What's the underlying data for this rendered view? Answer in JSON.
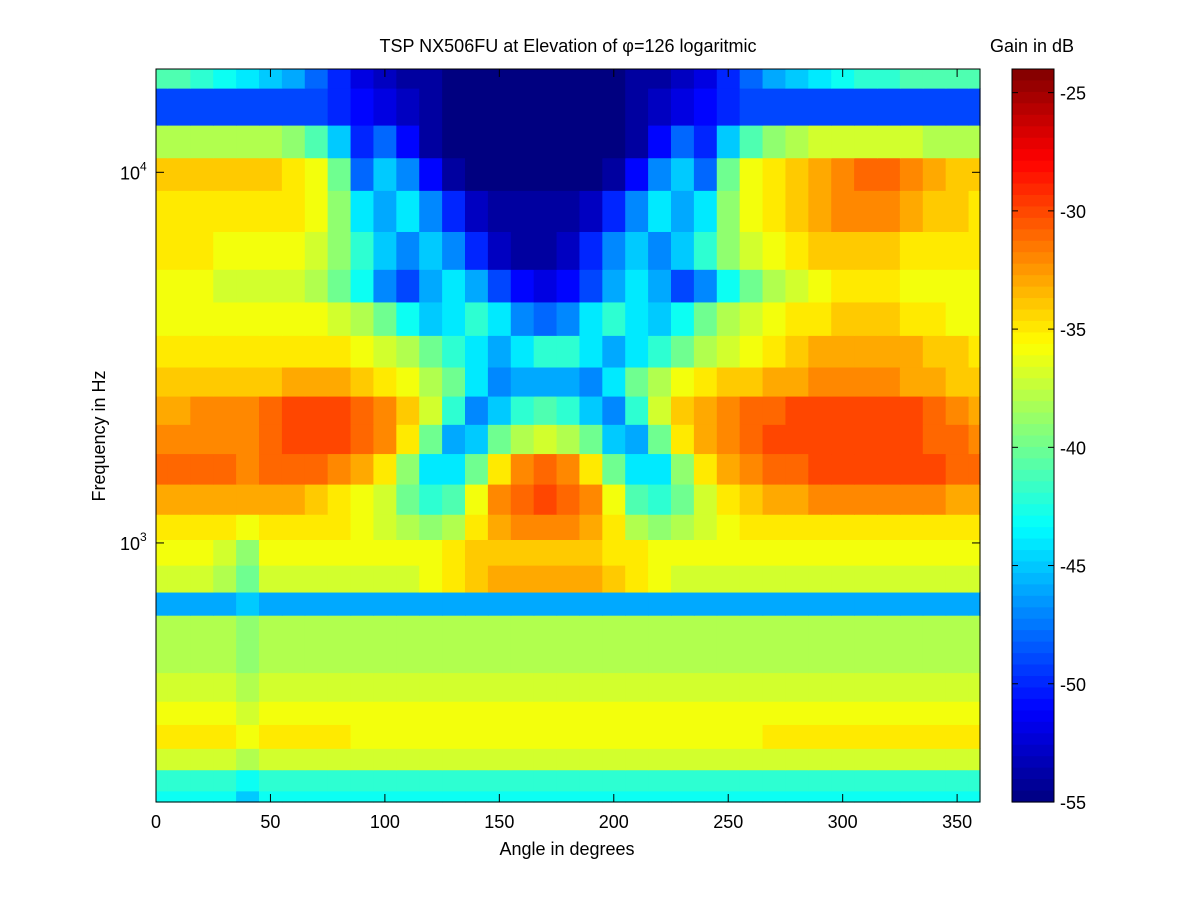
{
  "chart_data": {
    "type": "heatmap",
    "title": "TSP NX506FU at Elevation of φ=126 logaritmic",
    "xlabel": "Angle in degrees",
    "ylabel": "Frequency in Hz",
    "colorbar_label": "Gain in dB",
    "colormap": "jet",
    "x_range": [
      0,
      360
    ],
    "y_range": [
      200,
      19000
    ],
    "y_scale": "log",
    "clim": [
      -55,
      -24
    ],
    "grid": false,
    "x_ticks": [
      0,
      50,
      100,
      150,
      200,
      250,
      300,
      350
    ],
    "y_ticks": [
      {
        "base": "10",
        "exp": "3",
        "value": 1000
      },
      {
        "base": "10",
        "exp": "4",
        "value": 10000
      }
    ],
    "colorbar_ticks": [
      -25,
      -30,
      -35,
      -40,
      -45,
      -50,
      -55
    ],
    "angles": [
      0,
      10,
      20,
      30,
      40,
      50,
      60,
      70,
      80,
      90,
      100,
      110,
      120,
      130,
      140,
      150,
      160,
      170,
      180,
      190,
      200,
      210,
      220,
      230,
      240,
      250,
      260,
      270,
      280,
      290,
      300,
      310,
      320,
      330,
      340,
      350,
      360
    ],
    "frequencies": [
      200,
      230,
      260,
      300,
      350,
      400,
      500,
      600,
      680,
      800,
      950,
      1100,
      1300,
      1600,
      1900,
      2300,
      2700,
      3300,
      4000,
      5000,
      6000,
      8000,
      10000,
      12000,
      15000,
      19000
    ],
    "gain_db": [
      [
        -43,
        -43,
        -43,
        -43,
        -45,
        -43,
        -43,
        -43,
        -43,
        -43,
        -43,
        -43,
        -43,
        -43,
        -43,
        -43,
        -43,
        -43,
        -43,
        -43,
        -43,
        -43,
        -43,
        -43,
        -43,
        -43,
        -43,
        -43,
        -43,
        -43,
        -43,
        -43,
        -43,
        -43,
        -43,
        -43,
        -43
      ],
      [
        -42,
        -42,
        -42,
        -42,
        -43,
        -42,
        -42,
        -42,
        -42,
        -42,
        -42,
        -42,
        -42,
        -42,
        -42,
        -42,
        -42,
        -42,
        -42,
        -42,
        -42,
        -42,
        -42,
        -42,
        -42,
        -42,
        -42,
        -42,
        -42,
        -42,
        -42,
        -42,
        -42,
        -42,
        -42,
        -42,
        -42
      ],
      [
        -37,
        -37,
        -37,
        -37,
        -38,
        -37,
        -37,
        -37,
        -37,
        -37,
        -37,
        -37,
        -37,
        -37,
        -37,
        -37,
        -37,
        -37,
        -37,
        -37,
        -37,
        -37,
        -37,
        -37,
        -37,
        -37,
        -37,
        -37,
        -37,
        -37,
        -37,
        -37,
        -37,
        -37,
        -37,
        -37,
        -37
      ],
      [
        -35,
        -35,
        -35,
        -35,
        -36,
        -35,
        -35,
        -35,
        -35,
        -36,
        -36,
        -36,
        -36,
        -36,
        -36,
        -36,
        -36,
        -36,
        -36,
        -36,
        -36,
        -36,
        -36,
        -36,
        -36,
        -36,
        -36,
        -35,
        -35,
        -35,
        -35,
        -35,
        -35,
        -35,
        -35,
        -35,
        -35
      ],
      [
        -36,
        -36,
        -36,
        -36,
        -37,
        -36,
        -36,
        -36,
        -36,
        -36,
        -36,
        -36,
        -36,
        -36,
        -36,
        -36,
        -36,
        -36,
        -36,
        -36,
        -36,
        -36,
        -36,
        -36,
        -36,
        -36,
        -36,
        -36,
        -36,
        -36,
        -36,
        -36,
        -36,
        -36,
        -36,
        -36,
        -36
      ],
      [
        -37,
        -37,
        -37,
        -37,
        -38,
        -37,
        -37,
        -37,
        -37,
        -37,
        -37,
        -37,
        -37,
        -37,
        -37,
        -37,
        -37,
        -37,
        -37,
        -37,
        -37,
        -37,
        -37,
        -37,
        -37,
        -37,
        -37,
        -37,
        -37,
        -37,
        -37,
        -37,
        -37,
        -37,
        -37,
        -37,
        -37
      ],
      [
        -38,
        -38,
        -38,
        -38,
        -39,
        -38,
        -38,
        -38,
        -38,
        -38,
        -38,
        -38,
        -38,
        -38,
        -38,
        -38,
        -38,
        -38,
        -38,
        -38,
        -38,
        -38,
        -38,
        -38,
        -38,
        -38,
        -38,
        -38,
        -38,
        -38,
        -38,
        -38,
        -38,
        -38,
        -38,
        -38,
        -38
      ],
      [
        -38,
        -38,
        -38,
        -38,
        -39,
        -38,
        -38,
        -38,
        -38,
        -38,
        -38,
        -38,
        -38,
        -38,
        -38,
        -38,
        -38,
        -38,
        -38,
        -38,
        -38,
        -38,
        -38,
        -38,
        -38,
        -38,
        -38,
        -38,
        -38,
        -38,
        -38,
        -38,
        -38,
        -38,
        -38,
        -38,
        -38
      ],
      [
        -46,
        -46,
        -46,
        -46,
        -45,
        -46,
        -46,
        -46,
        -46,
        -46,
        -46,
        -46,
        -46,
        -46,
        -46,
        -46,
        -46,
        -46,
        -46,
        -46,
        -46,
        -46,
        -46,
        -46,
        -46,
        -46,
        -46,
        -46,
        -46,
        -46,
        -46,
        -46,
        -46,
        -46,
        -46,
        -46,
        -46
      ],
      [
        -37,
        -37,
        -37,
        -38,
        -40,
        -37,
        -37,
        -37,
        -37,
        -37,
        -37,
        -37,
        -36,
        -35,
        -34,
        -33,
        -33,
        -33,
        -33,
        -33,
        -34,
        -35,
        -36,
        -37,
        -37,
        -37,
        -37,
        -37,
        -37,
        -37,
        -37,
        -37,
        -37,
        -37,
        -37,
        -37,
        -37
      ],
      [
        -36,
        -36,
        -36,
        -37,
        -39,
        -36,
        -36,
        -36,
        -36,
        -36,
        -36,
        -36,
        -36,
        -35,
        -34,
        -34,
        -34,
        -34,
        -34,
        -34,
        -35,
        -35,
        -36,
        -36,
        -36,
        -36,
        -36,
        -36,
        -36,
        -36,
        -36,
        -36,
        -36,
        -36,
        -36,
        -36,
        -36
      ],
      [
        -35,
        -35,
        -35,
        -35,
        -36,
        -35,
        -35,
        -35,
        -35,
        -36,
        -37,
        -38,
        -39,
        -38,
        -35,
        -33,
        -32,
        -32,
        -32,
        -33,
        -35,
        -38,
        -39,
        -38,
        -37,
        -36,
        -35,
        -35,
        -35,
        -35,
        -35,
        -35,
        -35,
        -35,
        -35,
        -35,
        -35
      ],
      [
        -33,
        -33,
        -33,
        -33,
        -33,
        -33,
        -33,
        -34,
        -35,
        -36,
        -37,
        -40,
        -42,
        -41,
        -36,
        -32,
        -31,
        -30,
        -31,
        -32,
        -36,
        -41,
        -42,
        -40,
        -37,
        -35,
        -34,
        -33,
        -33,
        -32,
        -32,
        -32,
        -32,
        -32,
        -32,
        -33,
        -33
      ],
      [
        -31,
        -31,
        -31,
        -31,
        -32,
        -31,
        -31,
        -31,
        -32,
        -33,
        -35,
        -39,
        -44,
        -44,
        -40,
        -35,
        -32,
        -31,
        -32,
        -35,
        -40,
        -44,
        -44,
        -39,
        -35,
        -33,
        -32,
        -31,
        -31,
        -30,
        -30,
        -30,
        -30,
        -30,
        -30,
        -31,
        -31
      ],
      [
        -32,
        -32,
        -32,
        -32,
        -32,
        -31,
        -30,
        -30,
        -30,
        -31,
        -32,
        -35,
        -40,
        -46,
        -45,
        -40,
        -38,
        -37,
        -38,
        -40,
        -45,
        -46,
        -40,
        -35,
        -33,
        -32,
        -31,
        -30,
        -30,
        -30,
        -30,
        -30,
        -30,
        -30,
        -31,
        -31,
        -32
      ],
      [
        -33,
        -33,
        -32,
        -32,
        -32,
        -31,
        -30,
        -30,
        -30,
        -31,
        -32,
        -34,
        -37,
        -42,
        -47,
        -45,
        -42,
        -41,
        -42,
        -45,
        -47,
        -42,
        -37,
        -34,
        -33,
        -32,
        -31,
        -31,
        -30,
        -30,
        -30,
        -30,
        -30,
        -30,
        -31,
        -32,
        -33
      ],
      [
        -34,
        -34,
        -34,
        -34,
        -34,
        -34,
        -33,
        -33,
        -33,
        -34,
        -35,
        -36,
        -38,
        -40,
        -44,
        -47,
        -46,
        -46,
        -46,
        -47,
        -44,
        -40,
        -38,
        -36,
        -35,
        -34,
        -34,
        -33,
        -33,
        -32,
        -32,
        -32,
        -32,
        -33,
        -33,
        -34,
        -34
      ],
      [
        -35,
        -35,
        -35,
        -35,
        -35,
        -35,
        -35,
        -35,
        -35,
        -36,
        -37,
        -38,
        -40,
        -42,
        -44,
        -46,
        -44,
        -42,
        -42,
        -44,
        -46,
        -44,
        -42,
        -40,
        -38,
        -37,
        -36,
        -35,
        -34,
        -33,
        -33,
        -33,
        -33,
        -33,
        -34,
        -34,
        -35
      ],
      [
        -36,
        -36,
        -36,
        -36,
        -36,
        -36,
        -36,
        -36,
        -37,
        -38,
        -40,
        -43,
        -45,
        -44,
        -42,
        -44,
        -47,
        -48,
        -47,
        -44,
        -42,
        -44,
        -45,
        -43,
        -40,
        -38,
        -37,
        -36,
        -35,
        -35,
        -34,
        -34,
        -34,
        -35,
        -35,
        -36,
        -36
      ],
      [
        -36,
        -36,
        -36,
        -37,
        -37,
        -37,
        -37,
        -38,
        -40,
        -43,
        -47,
        -49,
        -46,
        -44,
        -46,
        -49,
        -51,
        -52,
        -51,
        -49,
        -46,
        -44,
        -46,
        -49,
        -47,
        -43,
        -40,
        -38,
        -37,
        -36,
        -35,
        -35,
        -35,
        -36,
        -36,
        -36,
        -36
      ],
      [
        -35,
        -35,
        -35,
        -36,
        -36,
        -36,
        -36,
        -37,
        -39,
        -42,
        -45,
        -47,
        -45,
        -47,
        -50,
        -53,
        -54,
        -54,
        -53,
        -50,
        -47,
        -45,
        -47,
        -45,
        -42,
        -39,
        -37,
        -36,
        -35,
        -34,
        -34,
        -34,
        -34,
        -35,
        -35,
        -35,
        -35
      ],
      [
        -35,
        -35,
        -35,
        -35,
        -35,
        -35,
        -35,
        -36,
        -39,
        -44,
        -46,
        -44,
        -47,
        -50,
        -53,
        -54,
        -54,
        -54,
        -54,
        -53,
        -50,
        -47,
        -44,
        -46,
        -44,
        -39,
        -36,
        -35,
        -34,
        -33,
        -32,
        -32,
        -32,
        -33,
        -34,
        -34,
        -35
      ],
      [
        -34,
        -34,
        -34,
        -34,
        -34,
        -34,
        -35,
        -36,
        -40,
        -48,
        -45,
        -47,
        -51,
        -54,
        -55,
        -55,
        -55,
        -55,
        -55,
        -55,
        -54,
        -51,
        -47,
        -45,
        -48,
        -40,
        -36,
        -35,
        -34,
        -33,
        -32,
        -31,
        -31,
        -32,
        -33,
        -34,
        -34
      ],
      [
        -38,
        -38,
        -38,
        -38,
        -38,
        -38,
        -39,
        -41,
        -45,
        -50,
        -48,
        -51,
        -54,
        -55,
        -55,
        -55,
        -55,
        -55,
        -55,
        -55,
        -55,
        -54,
        -51,
        -48,
        -50,
        -45,
        -41,
        -39,
        -38,
        -37,
        -37,
        -37,
        -37,
        -37,
        -38,
        -38,
        -38
      ],
      [
        -49,
        -49,
        -49,
        -49,
        -49,
        -49,
        -49,
        -49,
        -50,
        -51,
        -52,
        -53,
        -54,
        -55,
        -55,
        -55,
        -55,
        -55,
        -55,
        -55,
        -55,
        -54,
        -53,
        -52,
        -51,
        -50,
        -49,
        -49,
        -49,
        -49,
        -49,
        -49,
        -49,
        -49,
        -49,
        -49,
        -49
      ],
      [
        -41,
        -41,
        -42,
        -43,
        -44,
        -45,
        -46,
        -48,
        -50,
        -52,
        -53,
        -54,
        -54,
        -55,
        -55,
        -55,
        -55,
        -55,
        -55,
        -55,
        -55,
        -54,
        -54,
        -53,
        -52,
        -50,
        -48,
        -46,
        -45,
        -44,
        -43,
        -42,
        -42,
        -41,
        -41,
        -41,
        -41
      ]
    ]
  }
}
